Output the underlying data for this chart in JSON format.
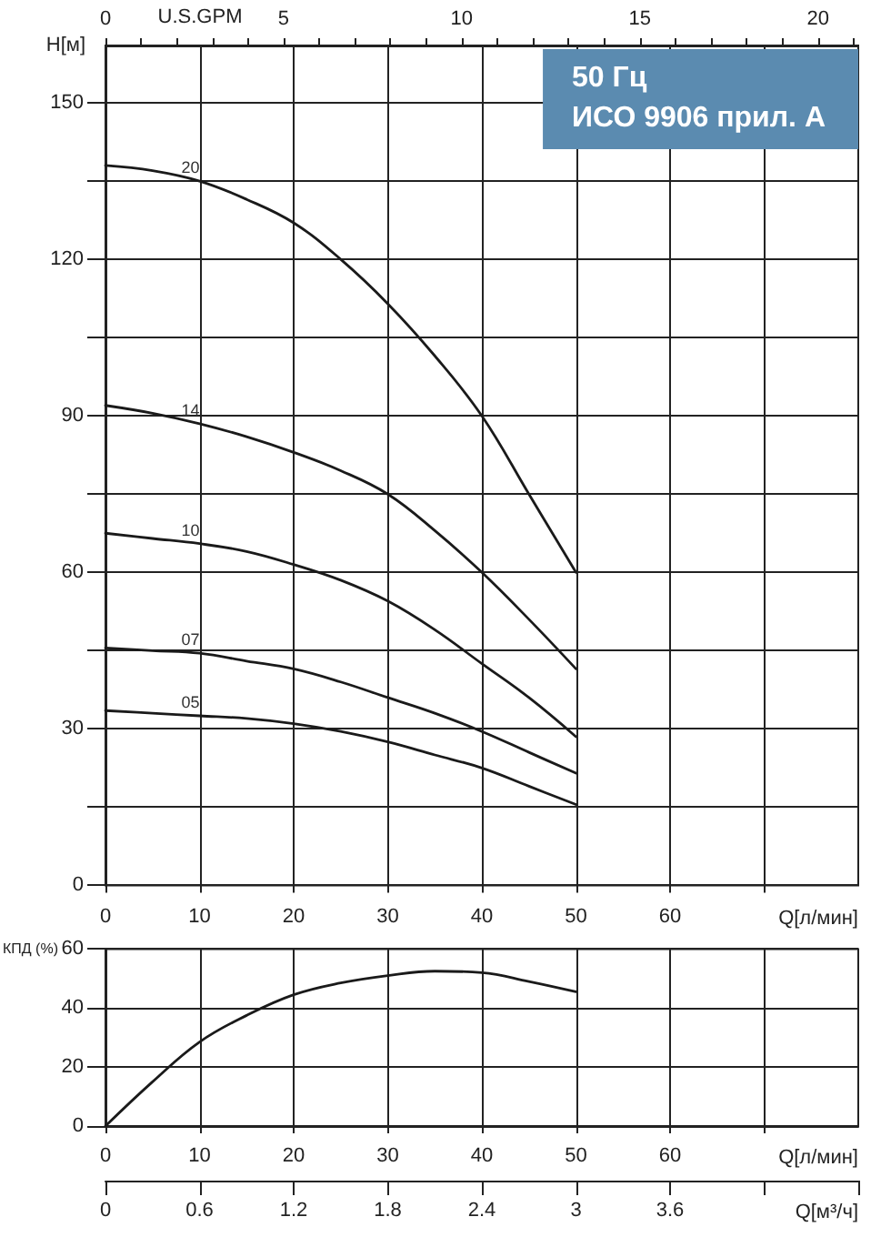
{
  "chart_data": [
    {
      "type": "line",
      "title": "50 Гц",
      "subtitle": "ИСО 9906 прил. А",
      "xlabel": "Q[л/мин]",
      "ylabel": "H[м]",
      "x2label": "U.S.GPM",
      "x": [
        0,
        5,
        10,
        15,
        20,
        25,
        30,
        35,
        40,
        45,
        50
      ],
      "series": [
        {
          "name": "20",
          "color": "#1a1a1a",
          "values": [
            138,
            137,
            135,
            131.5,
            127,
            120,
            111.5,
            101.5,
            90,
            75,
            60
          ]
        },
        {
          "name": "14",
          "color": "#1a1a1a",
          "values": [
            92,
            90.5,
            88.5,
            86,
            83,
            79.5,
            75,
            68,
            60,
            51,
            41.5
          ]
        },
        {
          "name": "10",
          "color": "#1a1a1a",
          "values": [
            67.5,
            66.5,
            65.5,
            64,
            61.5,
            58.5,
            54.5,
            49,
            42.5,
            36,
            28.5
          ]
        },
        {
          "name": "07",
          "color": "#1a1a1a",
          "values": [
            45.5,
            45,
            44.5,
            43,
            41.5,
            39,
            36,
            33,
            29.5,
            25.5,
            21.5
          ]
        },
        {
          "name": "05",
          "color": "#1a1a1a",
          "values": [
            33.5,
            33,
            32.5,
            32,
            31,
            29.5,
            27.5,
            25,
            22.5,
            19,
            15.5
          ]
        }
      ],
      "xlim": [
        0,
        80
      ],
      "xticks": [
        0,
        10,
        20,
        30,
        40,
        50,
        60,
        {
          "value": 70,
          "label": null
        }
      ],
      "ylim": [
        0,
        161
      ],
      "yticks": [
        0,
        {
          "value": 15,
          "label": null
        },
        30,
        {
          "value": 45,
          "label": null
        },
        60,
        {
          "value": 75,
          "label": null
        },
        90,
        {
          "value": 105,
          "label": null
        },
        120,
        {
          "value": 135,
          "label": null
        },
        150
      ],
      "x2lim": [
        0,
        21.13
      ],
      "x2ticks": [
        0,
        {
          "value": 1,
          "label": null
        },
        {
          "value": 2,
          "label": null
        },
        {
          "value": 3,
          "label": null
        },
        {
          "value": 4,
          "label": null
        },
        5,
        {
          "value": 6,
          "label": null
        },
        {
          "value": 7,
          "label": null
        },
        {
          "value": 8,
          "label": null
        },
        {
          "value": 9,
          "label": null
        },
        10,
        {
          "value": 11,
          "label": null
        },
        {
          "value": 12,
          "label": null
        },
        {
          "value": 13,
          "label": null
        },
        {
          "value": 14,
          "label": null
        },
        15,
        {
          "value": 16,
          "label": null
        },
        {
          "value": 17,
          "label": null
        },
        {
          "value": 18,
          "label": null
        },
        {
          "value": 19,
          "label": null
        },
        20,
        {
          "value": 21,
          "label": null
        }
      ],
      "grid": true,
      "legend": false,
      "marker": "none",
      "line_style": "solid"
    },
    {
      "type": "line",
      "xlabel": "Q[л/мин]",
      "ylabel": "КПД (%)",
      "x2label": "Q[м³/ч]",
      "x": [
        0,
        5,
        10,
        15,
        20,
        25,
        30,
        35,
        40,
        45,
        50
      ],
      "values": [
        0,
        15,
        28.5,
        37.5,
        44.5,
        48.5,
        51,
        52.5,
        52,
        49,
        45.5
      ],
      "color": "#1a1a1a",
      "xlim": [
        0,
        80
      ],
      "xticks": [
        0,
        10,
        20,
        30,
        40,
        50,
        60,
        {
          "value": 70,
          "label": null
        }
      ],
      "ylim": [
        0,
        60
      ],
      "yticks": [
        0,
        20,
        40,
        60
      ],
      "x2lim": [
        0,
        4.8
      ],
      "x2ticks": [
        0,
        0.6,
        1.2,
        1.8,
        2.4,
        3,
        3.6,
        {
          "value": 4.2,
          "label": null
        },
        {
          "value": 4.8,
          "label": null
        }
      ],
      "grid": true,
      "legend": false,
      "marker": "none",
      "line_style": "solid"
    }
  ]
}
